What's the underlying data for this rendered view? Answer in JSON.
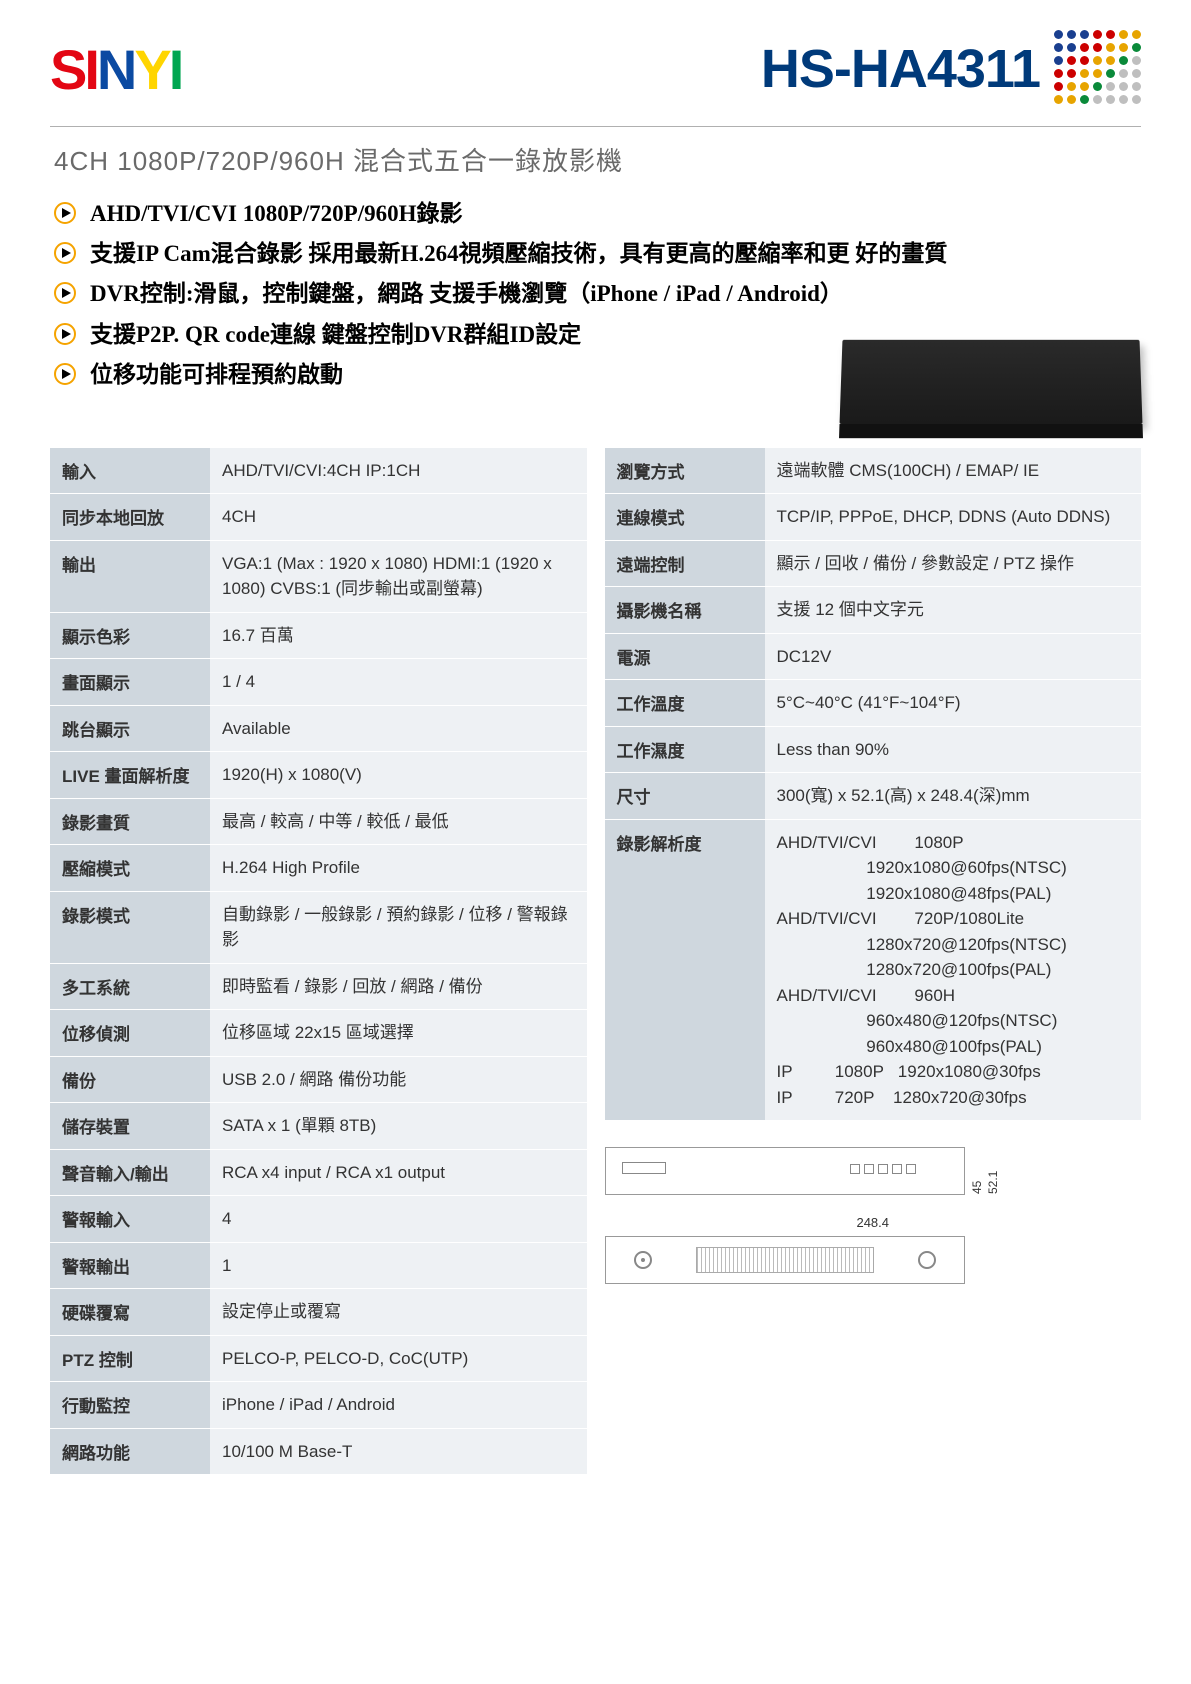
{
  "brand": {
    "letters": [
      "S",
      "I",
      "N",
      "Y",
      "I"
    ],
    "colors": [
      "#e30613",
      "#e30613",
      "#0b4aa2",
      "#ffd500",
      "#00a651"
    ]
  },
  "model": "HS-HA4311",
  "dot_colors": [
    [
      "#1a3f8f",
      "#1a3f8f",
      "#1a3f8f",
      "#c00",
      "#c00",
      "#e7a400",
      "#e7a400"
    ],
    [
      "#1a3f8f",
      "#1a3f8f",
      "#c00",
      "#c00",
      "#e7a400",
      "#e7a400",
      "#0a8a3a"
    ],
    [
      "#1a3f8f",
      "#c00",
      "#c00",
      "#e7a400",
      "#e7a400",
      "#0a8a3a",
      "#bfbfbf"
    ],
    [
      "#c00",
      "#c00",
      "#e7a400",
      "#e7a400",
      "#0a8a3a",
      "#bfbfbf",
      "#bfbfbf"
    ],
    [
      "#c00",
      "#e7a400",
      "#e7a400",
      "#0a8a3a",
      "#bfbfbf",
      "#bfbfbf",
      "#bfbfbf"
    ],
    [
      "#e7a400",
      "#e7a400",
      "#0a8a3a",
      "#bfbfbf",
      "#bfbfbf",
      "#bfbfbf",
      "#bfbfbf"
    ]
  ],
  "subtitle": "4CH 1080P/720P/960H  混合式五合一錄放影機",
  "features": [
    "AHD/TVI/CVI 1080P/720P/960H錄影",
    "支援IP Cam混合錄影 採用最新H.264視頻壓縮技術，具有更高的壓縮率和更 好的畫質",
    "DVR控制:滑鼠，控制鍵盤，網路 支援手機瀏覽（iPhone / iPad / Android）",
    "支援P2P. QR code連線 鍵盤控制DVR群組ID設定",
    "位移功能可排程預約啟動"
  ],
  "specs_left": [
    {
      "k": "輸入",
      "v": "AHD/TVI/CVI:4CH  IP:1CH"
    },
    {
      "k": "同步本地回放",
      "v": "4CH"
    },
    {
      "k": "輸出",
      "v": "VGA:1 (Max : 1920 x 1080)   HDMI:1 (1920 x 1080)   CVBS:1 (同步輸出或副螢幕)"
    },
    {
      "k": "顯示色彩",
      "v": "16.7 百萬"
    },
    {
      "k": "畫面顯示",
      "v": "1 / 4"
    },
    {
      "k": "跳台顯示",
      "v": "Available"
    },
    {
      "k": "LIVE 畫面解析度",
      "v": "1920(H) x 1080(V)"
    },
    {
      "k": "錄影畫質",
      "v": "最高 / 較高 / 中等 / 較低 / 最低"
    },
    {
      "k": "壓縮模式",
      "v": "H.264 High Profile"
    },
    {
      "k": "錄影模式",
      "v": "自動錄影 / 一般錄影 / 預約錄影 / 位移 / 警報錄影"
    },
    {
      "k": "多工系統",
      "v": "即時監看 / 錄影 / 回放 / 網路 / 備份"
    },
    {
      "k": "位移偵測",
      "v": "位移區域 22x15 區域選擇"
    },
    {
      "k": "備份",
      "v": "USB 2.0 / 網路 備份功能"
    },
    {
      "k": "儲存裝置",
      "v": "SATA x 1 (單顆 8TB)"
    },
    {
      "k": "聲音輸入/輸出",
      "v": "RCA x4 input / RCA x1 output"
    },
    {
      "k": "警報輸入",
      "v": "4"
    },
    {
      "k": "警報輸出",
      "v": "1"
    },
    {
      "k": "硬碟覆寫",
      "v": "設定停止或覆寫"
    },
    {
      "k": "PTZ 控制",
      "v": "PELCO-P, PELCO-D, CoC(UTP)"
    },
    {
      "k": "行動監控",
      "v": "iPhone / iPad / Android"
    },
    {
      "k": "網路功能",
      "v": "10/100 M Base-T"
    }
  ],
  "specs_right": [
    {
      "k": "瀏覽方式",
      "v": "遠端軟體 CMS(100CH) / EMAP/ IE"
    },
    {
      "k": "連線模式",
      "v": "TCP/IP, PPPoE, DHCP, DDNS (Auto DDNS)"
    },
    {
      "k": "遠端控制",
      "v": "顯示 / 回收 / 備份 / 參數設定 / PTZ 操作"
    },
    {
      "k": "攝影機名稱",
      "v": "支援 12 個中文字元"
    },
    {
      "k": "電源",
      "v": "DC12V"
    },
    {
      "k": "工作溫度",
      "v": "5°C~40°C (41°F~104°F)"
    },
    {
      "k": "工作濕度",
      "v": "Less than 90%"
    },
    {
      "k": "尺寸",
      "v": "300(寬) x 52.1(高) x 248.4(深)mm"
    },
    {
      "k": "錄影解析度",
      "v": "AHD/TVI/CVI        1080P\n                   1920x1080@60fps(NTSC)\n                   1920x1080@48fps(PAL)\nAHD/TVI/CVI        720P/1080Lite\n                   1280x720@120fps(NTSC)\n                   1280x720@100fps(PAL)\nAHD/TVI/CVI        960H\n                   960x480@120fps(NTSC)\n                   960x480@100fps(PAL)\nIP         1080P   1920x1080@30fps\nIP         720P    1280x720@30fps"
    }
  ],
  "drawing": {
    "front_height_outer": "52.1",
    "front_height_inner": "45",
    "depth": "248.4"
  },
  "colors": {
    "key_bg": "#cfd7de",
    "val_bg": "#eef1f4",
    "model_color": "#003a7a",
    "subtitle_color": "#6a6a6a",
    "play_ring": "#f5a300"
  }
}
